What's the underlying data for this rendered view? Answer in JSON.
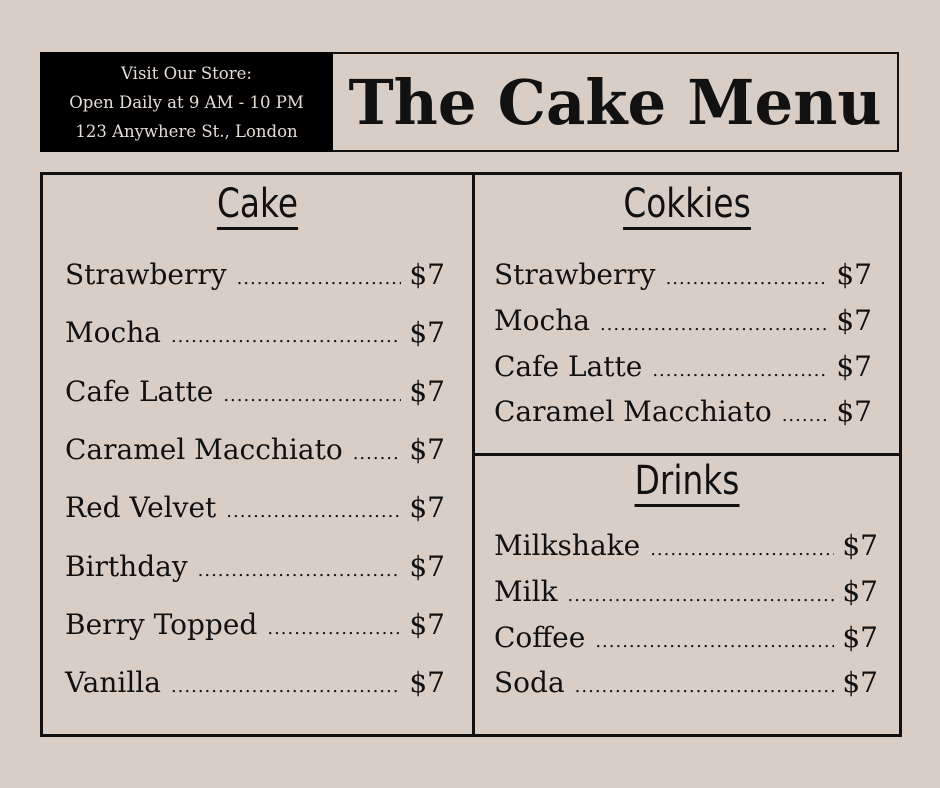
{
  "store": {
    "line1": "Visit Our Store:",
    "line2": "Open Daily at 9 AM - 10 PM",
    "line3": "123 Anywhere St., London"
  },
  "title": "The Cake Menu",
  "sections": {
    "cake": {
      "heading": "Cake",
      "items": [
        {
          "name": "Strawberry",
          "price": "$7"
        },
        {
          "name": "Mocha",
          "price": "$7"
        },
        {
          "name": "Cafe Latte",
          "price": "$7"
        },
        {
          "name": "Caramel Macchiato",
          "price": "$7"
        },
        {
          "name": "Red Velvet",
          "price": "$7"
        },
        {
          "name": "Birthday",
          "price": "$7"
        },
        {
          "name": "Berry Topped",
          "price": "$7"
        },
        {
          "name": "Vanilla",
          "price": "$7"
        }
      ]
    },
    "cookies": {
      "heading": "Cokkies",
      "items": [
        {
          "name": "Strawberry",
          "price": "$7"
        },
        {
          "name": "Mocha",
          "price": "$7"
        },
        {
          "name": "Cafe Latte",
          "price": "$7"
        },
        {
          "name": "Caramel Macchiato",
          "price": "$7"
        }
      ]
    },
    "drinks": {
      "heading": "Drinks",
      "items": [
        {
          "name": "Milkshake",
          "price": "$7"
        },
        {
          "name": "Milk",
          "price": "$7"
        },
        {
          "name": "Coffee",
          "price": "$7"
        },
        {
          "name": "Soda",
          "price": "$7"
        }
      ]
    }
  }
}
